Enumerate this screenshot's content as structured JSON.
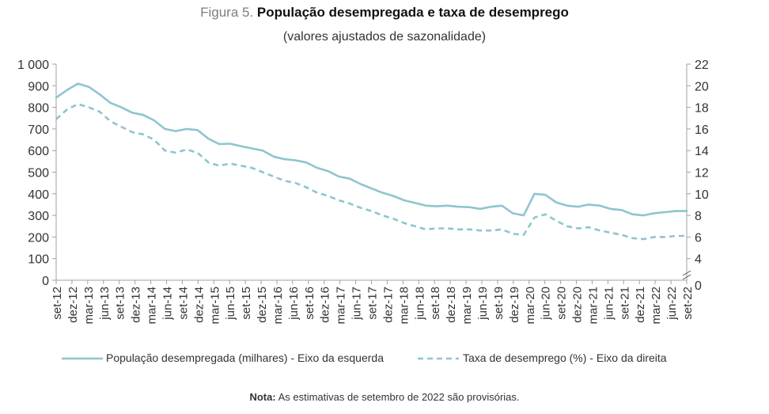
{
  "figure": {
    "label": "Figura 5.",
    "title": "População desempregada e taxa de desemprego",
    "subtitle": "(valores ajustados de sazonalidade)"
  },
  "note": {
    "label": "Nota:",
    "text": "As estimativas de setembro de 2022 são provisórias."
  },
  "colors": {
    "series": "#8ec5cf",
    "axis": "#a0a0a0",
    "text": "#333333"
  },
  "chart_data": {
    "type": "line",
    "title": "População desempregada e taxa de desemprego",
    "subtitle": "(valores ajustados de sazonalidade)",
    "x_ticks": [
      "set-12",
      "dez-12",
      "mar-13",
      "jun-13",
      "set-13",
      "dez-13",
      "mar-14",
      "jun-14",
      "set-14",
      "dez-14",
      "mar-15",
      "jun-15",
      "set-15",
      "dez-15",
      "mar-16",
      "jun-16",
      "set-16",
      "dez-16",
      "mar-17",
      "jun-17",
      "set-17",
      "dez-17",
      "mar-18",
      "jun-18",
      "set-18",
      "dez-18",
      "mar-19",
      "jun-19",
      "set-19",
      "dez-19",
      "mar-20",
      "jun-20",
      "set-20",
      "dez-20",
      "mar-21",
      "jun-21",
      "set-21",
      "dez-21",
      "mar-22",
      "jun-22",
      "set-22"
    ],
    "y_left": {
      "ylim": [
        0,
        1000
      ],
      "ticks": [
        "0",
        "100",
        "200",
        "300",
        "400",
        "500",
        "600",
        "700",
        "800",
        "900",
        "1 000"
      ]
    },
    "y_right": {
      "ylim": [
        0,
        22
      ],
      "ticks": [
        "0",
        "4",
        "6",
        "8",
        "10",
        "12",
        "14",
        "16",
        "18",
        "20",
        "22"
      ]
    },
    "grid": false,
    "legend_position": "bottom",
    "series": [
      {
        "name": "População desempregada (milhares) - Eixo da esquerda",
        "axis": "left",
        "style": "solid",
        "values": [
          845,
          880,
          910,
          895,
          860,
          820,
          800,
          775,
          765,
          740,
          700,
          690,
          700,
          695,
          655,
          630,
          632,
          620,
          610,
          600,
          572,
          560,
          555,
          545,
          520,
          505,
          480,
          470,
          445,
          425,
          405,
          390,
          370,
          358,
          345,
          342,
          345,
          340,
          338,
          330,
          340,
          345,
          310,
          300,
          400,
          395,
          360,
          345,
          340,
          350,
          345,
          330,
          325,
          305,
          300,
          310,
          315,
          320,
          320
        ]
      },
      {
        "name": "Taxa de desemprego (%) - Eixo da direita",
        "axis": "right",
        "style": "dashed",
        "values": [
          16.9,
          17.8,
          18.3,
          18.0,
          17.6,
          16.7,
          16.2,
          15.7,
          15.5,
          15.0,
          14.0,
          13.8,
          14.1,
          13.8,
          12.9,
          12.6,
          12.8,
          12.6,
          12.4,
          12.0,
          11.6,
          11.2,
          11.0,
          10.6,
          10.1,
          9.8,
          9.4,
          9.1,
          8.7,
          8.4,
          8.0,
          7.7,
          7.3,
          7.0,
          6.7,
          6.8,
          6.8,
          6.7,
          6.7,
          6.6,
          6.6,
          6.7,
          6.3,
          6.2,
          7.8,
          8.1,
          7.5,
          7.0,
          6.8,
          6.9,
          6.6,
          6.4,
          6.2,
          5.9,
          5.8,
          6.0,
          6.0,
          6.1,
          6.1
        ]
      }
    ]
  }
}
